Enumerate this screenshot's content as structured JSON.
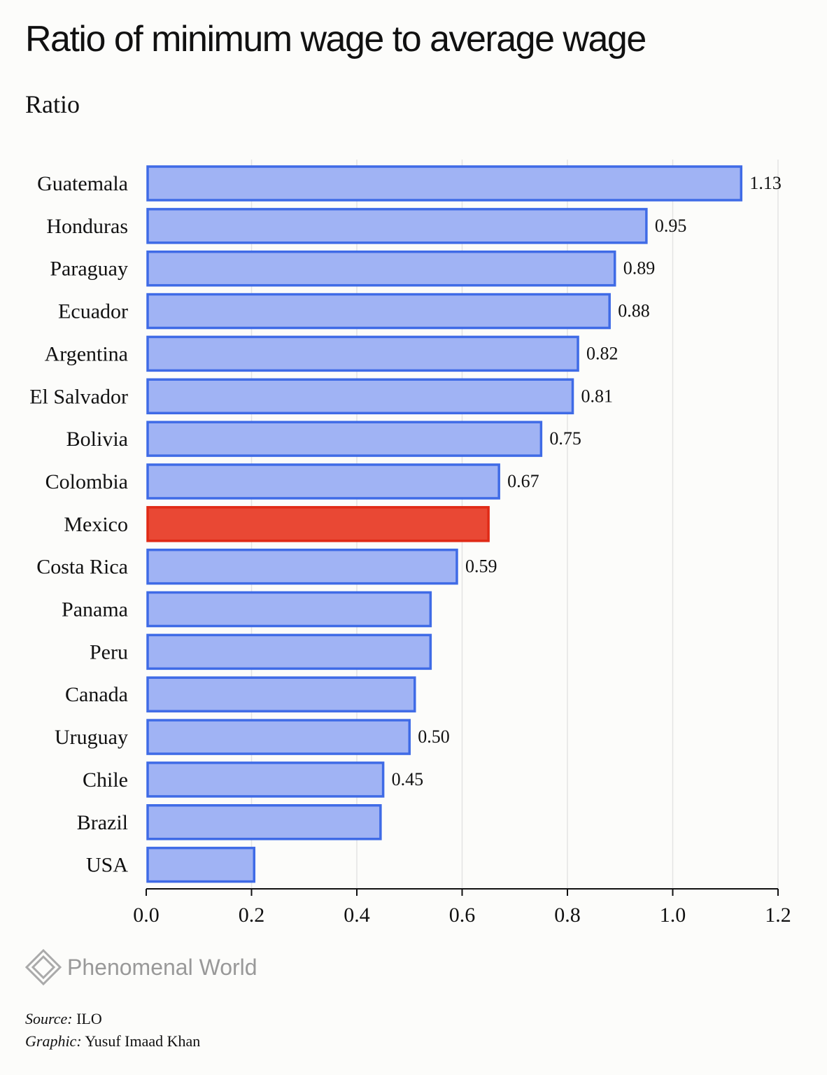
{
  "title": "Ratio of minimum wage to average wage",
  "subtitle": "Ratio",
  "chart_data": {
    "type": "bar",
    "orientation": "horizontal",
    "categories": [
      "Guatemala",
      "Honduras",
      "Paraguay",
      "Ecuador",
      "Argentina",
      "El Salvador",
      "Bolivia",
      "Colombia",
      "Mexico",
      "Costa Rica",
      "Panama",
      "Peru",
      "Canada",
      "Uruguay",
      "Chile",
      "Brazil",
      "USA"
    ],
    "values": [
      1.13,
      0.95,
      0.89,
      0.88,
      0.82,
      0.81,
      0.75,
      0.67,
      0.65,
      0.59,
      0.54,
      0.54,
      0.51,
      0.5,
      0.45,
      0.445,
      0.205
    ],
    "value_labels": [
      "1.13",
      "0.95",
      "0.89",
      "0.88",
      "0.82",
      "0.81",
      "0.75",
      "0.67",
      "",
      "0.59",
      "",
      "",
      "",
      "0.50",
      "0.45",
      "",
      ""
    ],
    "highlight": "Mexico",
    "xlim": [
      0,
      1.2
    ],
    "xticks": [
      "0.0",
      "0.2",
      "0.4",
      "0.6",
      "0.8",
      "1.0",
      "1.2"
    ],
    "xlabel": "",
    "ylabel": "",
    "grid": "vertical",
    "colors": {
      "bar_fill": "#a0b3f4",
      "bar_stroke": "#3f6be6",
      "highlight_fill": "#e94834",
      "highlight_stroke": "#e02a16",
      "grid": "#e3e3e3"
    }
  },
  "brand": {
    "name": "Phenomenal World",
    "icon": "diamond-logo-icon"
  },
  "credits": {
    "source_label": "Source:",
    "source_value": " ILO",
    "graphic_label": "Graphic:",
    "graphic_value": " Yusuf Imaad Khan"
  }
}
